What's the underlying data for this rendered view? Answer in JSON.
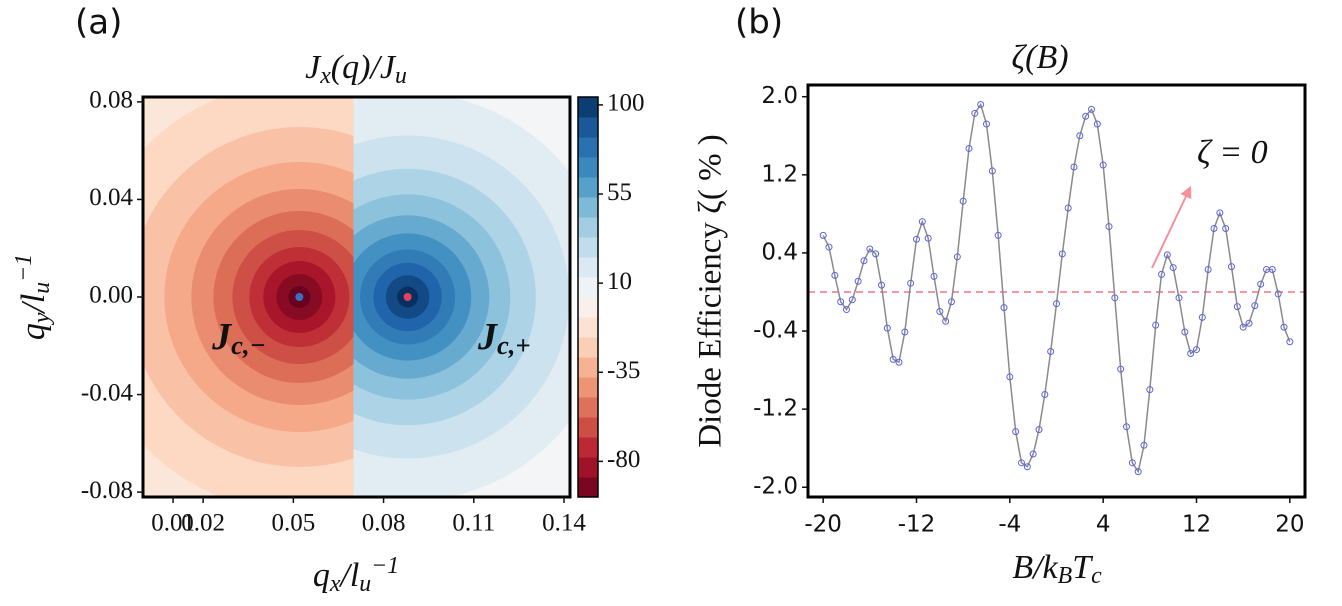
{
  "chart_data": [
    {
      "type": "contour",
      "panel": "(a)",
      "title": [
        {
          "text": "J"
        },
        {
          "text": "x",
          "shift": "sub"
        },
        {
          "text": "(q)/J"
        },
        {
          "text": "u",
          "shift": "sub"
        }
      ],
      "xlabel": [
        {
          "text": "q"
        },
        {
          "text": "x",
          "shift": "sub"
        },
        {
          "text": "/l"
        },
        {
          "text": "u",
          "shift": "sub"
        },
        {
          "text": "−1",
          "shift": "sup"
        }
      ],
      "ylabel": [
        {
          "text": "q"
        },
        {
          "text": "y",
          "shift": "sub"
        },
        {
          "text": "/l"
        },
        {
          "text": "u",
          "shift": "sub"
        },
        {
          "text": "−1",
          "shift": "sup"
        }
      ],
      "xlim": [
        0,
        0.142
      ],
      "xticks": [
        0.01,
        0.02,
        0.05,
        0.08,
        0.11,
        0.14
      ],
      "ylim": [
        -0.082,
        0.082
      ],
      "yticks": [
        0.08,
        0.04,
        {
          "value": 0,
          "label": "0.00"
        },
        -0.04,
        -0.08
      ],
      "colormap": "RdBu",
      "clim": [
        -98,
        104
      ],
      "cticks": [
        100,
        55,
        10,
        -35,
        -80
      ],
      "boundary_x": 0.07,
      "points": [
        {
          "x": 0.052,
          "y": 0,
          "color": "#3a6fc0"
        },
        {
          "x": 0.088,
          "y": 0,
          "color": "#e8405a"
        }
      ],
      "annotations": [
        {
          "x": 0.023,
          "y": -0.0176,
          "color": "#3a62b8",
          "text": [
            {
              "text": "J"
            },
            {
              "text": "c,−",
              "shift": "sub"
            }
          ]
        },
        {
          "x": 0.1114,
          "y": -0.0176,
          "color": "#e03050",
          "text": [
            {
              "text": "J"
            },
            {
              "text": "c,+",
              "shift": "sub"
            }
          ]
        }
      ]
    },
    {
      "type": "line",
      "panel": "(b)",
      "title": "ζ(B)",
      "xlabel": [
        {
          "text": "B/k"
        },
        {
          "text": "B",
          "shift": "sub"
        },
        {
          "text": "T"
        },
        {
          "text": "c",
          "shift": "sub"
        }
      ],
      "ylabel": "Diode Efficiency ζ( % )",
      "xlim": [
        -21.3,
        21.3
      ],
      "xticks": [
        -20,
        -12,
        -4,
        4,
        12,
        20
      ],
      "ylim": [
        -2.1,
        2.12
      ],
      "yticks": [
        {
          "value": 2.0,
          "label": "2.0"
        },
        1.2,
        0.4,
        -0.4,
        -1.2,
        {
          "value": -2.0,
          "label": "-2.0"
        }
      ],
      "x": [
        -20,
        -19.5,
        -19,
        -18.5,
        -18,
        -17.5,
        -17,
        -16.5,
        -16,
        -15.5,
        -15,
        -14.5,
        -14,
        -13.5,
        -13,
        -12.5,
        -12,
        -11.5,
        -11,
        -10.5,
        -10,
        -9.5,
        -9,
        -8.5,
        -8,
        -7.5,
        -7,
        -6.5,
        -6,
        -5.5,
        -5,
        -4.5,
        -4,
        -3.5,
        -3,
        -2.5,
        -2,
        -1.5,
        -1,
        -0.5,
        0,
        0.5,
        1,
        1.5,
        2,
        2.5,
        3,
        3.5,
        4,
        4.5,
        5,
        5.5,
        6,
        6.5,
        7,
        7.5,
        8,
        8.5,
        9,
        9.5,
        10,
        10.5,
        11,
        11.5,
        12,
        12.5,
        13,
        13.5,
        14,
        14.5,
        15,
        15.5,
        16,
        16.5,
        17,
        17.5,
        18,
        18.5,
        19,
        19.5,
        20
      ],
      "series": [
        {
          "color": "#5a66e0",
          "line_color": "#8a8a8a",
          "values": [
            0.58,
            0.46,
            0.17,
            -0.1,
            -0.18,
            -0.08,
            0.11,
            0.32,
            0.44,
            0.39,
            0.07,
            -0.37,
            -0.69,
            -0.72,
            -0.41,
            0.09,
            0.54,
            0.72,
            0.55,
            0.16,
            -0.2,
            -0.3,
            -0.1,
            0.36,
            0.93,
            1.47,
            1.83,
            1.92,
            1.72,
            1.24,
            0.58,
            -0.16,
            -0.87,
            -1.43,
            -1.75,
            -1.79,
            -1.66,
            -1.41,
            -1.05,
            -0.61,
            -0.12,
            0.39,
            0.86,
            1.28,
            1.6,
            1.8,
            1.87,
            1.72,
            1.3,
            0.67,
            -0.06,
            -0.79,
            -1.38,
            -1.75,
            -1.84,
            -1.57,
            -1.0,
            -0.34,
            0.18,
            0.38,
            0.25,
            -0.06,
            -0.41,
            -0.63,
            -0.59,
            -0.26,
            0.23,
            0.65,
            0.81,
            0.65,
            0.26,
            -0.15,
            -0.36,
            -0.32,
            -0.14,
            0.08,
            0.23,
            0.23,
            -0.02,
            -0.36,
            -0.51
          ]
        }
      ],
      "hline": {
        "y": 0,
        "color": "#f07585",
        "style": "dashed"
      },
      "annotations": [
        {
          "x": 12.04,
          "y": 1.4,
          "color": "#f4909c",
          "text": "ζ = 0"
        }
      ]
    }
  ]
}
